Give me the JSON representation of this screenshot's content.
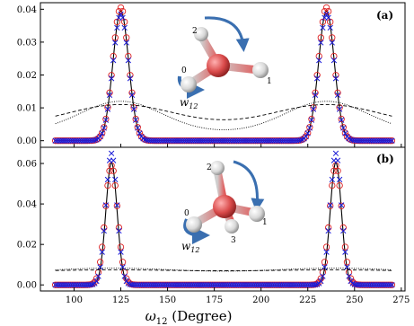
{
  "chart_data": [
    {
      "type": "line",
      "panel_label": "(a)",
      "xlim": [
        82,
        277
      ],
      "ylim": [
        -0.002,
        0.042
      ],
      "yticks": [
        0.0,
        0.01,
        0.02,
        0.03,
        0.04
      ],
      "ytick_labels": [
        "0.00",
        "0.01",
        "0.02",
        "0.03",
        "0.04"
      ],
      "xtick_labels": [],
      "series": [
        {
          "style": "solid-black",
          "peaks": [
            {
              "center": 125,
              "height": 0.0395,
              "width": 4.2
            },
            {
              "center": 235,
              "height": 0.0395,
              "width": 4.2
            }
          ]
        },
        {
          "style": "red-circles",
          "peaks": [
            {
              "center": 125,
              "height": 0.0405,
              "width": 4.2
            },
            {
              "center": 235,
              "height": 0.0405,
              "width": 4.2
            }
          ]
        },
        {
          "style": "blue-x",
          "peaks": [
            {
              "center": 125,
              "height": 0.0385,
              "width": 4.2
            },
            {
              "center": 235,
              "height": 0.0385,
              "width": 4.2
            }
          ]
        },
        {
          "style": "dashed",
          "baseline": 0.0045,
          "peaks": [
            {
              "center": 125,
              "height": 0.0065,
              "width": 28
            },
            {
              "center": 235,
              "height": 0.0065,
              "width": 28
            }
          ]
        },
        {
          "style": "dotted",
          "baseline": 0.0025,
          "peaks": [
            {
              "center": 125,
              "height": 0.0095,
              "width": 22
            },
            {
              "center": 235,
              "height": 0.0095,
              "width": 22
            }
          ]
        }
      ],
      "molecule_labels": [
        "2",
        "0",
        "1"
      ],
      "w_label": "w12"
    },
    {
      "type": "line",
      "panel_label": "(b)",
      "xlim": [
        82,
        277
      ],
      "ylim": [
        -0.003,
        0.068
      ],
      "yticks": [
        0.0,
        0.02,
        0.04,
        0.06
      ],
      "ytick_labels": [
        "0.00",
        "0.02",
        "0.04",
        "0.06"
      ],
      "xticks": [
        100,
        125,
        150,
        175,
        200,
        225,
        250,
        275
      ],
      "xtick_labels": [
        "100",
        "125",
        "150",
        "175",
        "200",
        "225",
        "250",
        "275"
      ],
      "series": [
        {
          "style": "solid-black",
          "peaks": [
            {
              "center": 120,
              "height": 0.0605,
              "width": 3.0
            },
            {
              "center": 240,
              "height": 0.0605,
              "width": 3.0
            }
          ]
        },
        {
          "style": "red-circles",
          "peaks": [
            {
              "center": 120,
              "height": 0.059,
              "width": 3.3
            },
            {
              "center": 240,
              "height": 0.059,
              "width": 3.3
            }
          ]
        },
        {
          "style": "blue-x",
          "peaks": [
            {
              "center": 120,
              "height": 0.065,
              "width": 3.0
            },
            {
              "center": 240,
              "height": 0.065,
              "width": 3.0
            }
          ]
        },
        {
          "style": "dashed",
          "baseline": 0.0062,
          "peaks": [
            {
              "center": 120,
              "height": 0.0012,
              "width": 40
            },
            {
              "center": 240,
              "height": 0.0012,
              "width": 40
            }
          ]
        },
        {
          "style": "dotted",
          "baseline": 0.0055,
          "peaks": [
            {
              "center": 120,
              "height": 0.0028,
              "width": 35
            },
            {
              "center": 240,
              "height": 0.0028,
              "width": 35
            }
          ]
        }
      ],
      "molecule_labels": [
        "2",
        "0",
        "1",
        "3"
      ],
      "w_label": "w12"
    }
  ],
  "xlabel": "ω12 (Degree)",
  "colors": {
    "line": "#000000",
    "circles": "#dd2020",
    "crosses": "#1a1ad6",
    "atom_o": "#d94a4a",
    "atom_h": "#e0e0e0",
    "arrow": "#3a6fb0"
  }
}
